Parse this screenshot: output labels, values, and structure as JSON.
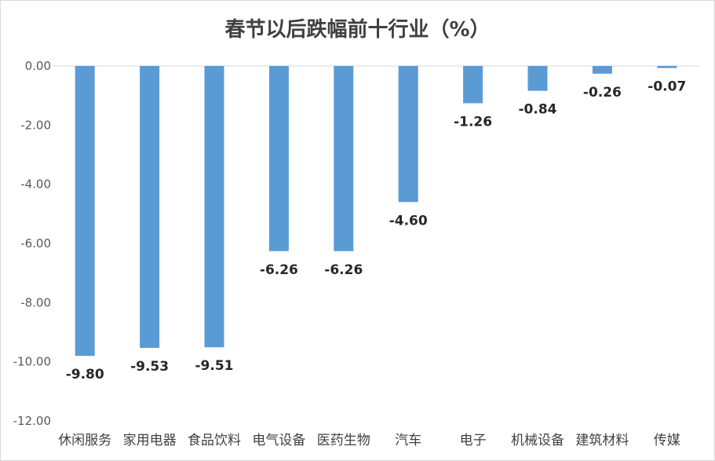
{
  "chart_data": {
    "type": "bar",
    "title": "春节以后跌幅前十行业（%）",
    "categories": [
      "休闲服务",
      "家用电器",
      "食品饮料",
      "电气设备",
      "医药生物",
      "汽车",
      "电子",
      "机械设备",
      "建筑材料",
      "传媒"
    ],
    "values": [
      -9.8,
      -9.53,
      -9.51,
      -6.26,
      -6.26,
      -4.6,
      -1.26,
      -0.84,
      -0.26,
      -0.07
    ],
    "data_labels": [
      "-9.80",
      "-9.53",
      "-9.51",
      "-6.26",
      "-6.26",
      "-4.60",
      "-1.26",
      "-0.84",
      "-0.26",
      "-0.07"
    ],
    "ylim": [
      -12,
      0
    ],
    "yticks": [
      0,
      -2,
      -4,
      -6,
      -8,
      -10,
      -12
    ],
    "ytick_labels": [
      "0.00",
      "-2.00",
      "-4.00",
      "-6.00",
      "-8.00",
      "-10.00",
      "-12.00"
    ],
    "xlabel": "",
    "ylabel": "",
    "grid": false,
    "legend": "none",
    "bar_color": "#5b9bd5"
  }
}
